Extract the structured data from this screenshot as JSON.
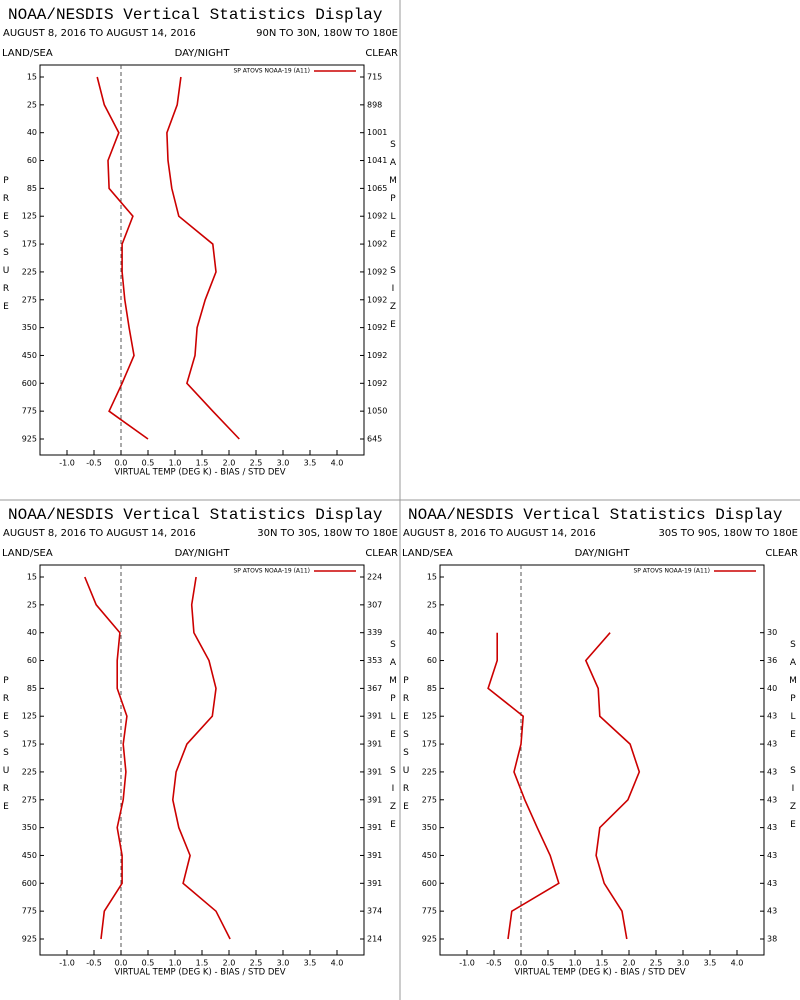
{
  "chart_data": [
    {
      "type": "line",
      "title": "NOAA/NESDIS Vertical Statistics Display",
      "date_range": "AUGUST 8, 2016 TO AUGUST 14, 2016",
      "region": "90N TO 30N, 180W TO 180E",
      "land_sea_label": "LAND/SEA",
      "day_night_label": "DAY/NIGHT",
      "clear_label": "CLEAR",
      "ylabel": "PRESSURE",
      "y2label": "SAMPLE SIZE",
      "xlabel": "VIRTUAL TEMP (DEG K) - BIAS / STD DEV",
      "legend": {
        "label": "SP ATOVS NOAA-19 (A11)",
        "color": "#cc0000"
      },
      "categories": [
        "15",
        "25",
        "40",
        "60",
        "85",
        "125",
        "175",
        "225",
        "275",
        "350",
        "450",
        "600",
        "775",
        "925"
      ],
      "sample_sizes": [
        "715",
        "898",
        "1001",
        "1041",
        "1065",
        "1092",
        "1092",
        "1092",
        "1092",
        "1092",
        "1092",
        "1092",
        "1050",
        "645"
      ],
      "series": [
        {
          "color": "#cc0000",
          "values": [
            -0.44,
            -0.31,
            -0.04,
            -0.24,
            -0.22,
            0.22,
            0.02,
            0.02,
            0.07,
            0.15,
            0.24,
            0.02,
            -0.22,
            0.5
          ]
        },
        {
          "color": "#cc0000",
          "values": [
            1.11,
            1.04,
            0.85,
            0.87,
            0.94,
            1.07,
            1.7,
            1.76,
            1.56,
            1.41,
            1.37,
            1.22,
            1.7,
            2.19
          ]
        }
      ],
      "xlim": [
        -1.5,
        4.5
      ],
      "xticks": [
        {
          "value": -1,
          "label": "-1.0"
        },
        -0.5,
        {
          "value": 0,
          "label": "0.0"
        },
        0.5,
        {
          "value": 1,
          "label": "1.0"
        },
        1.5,
        {
          "value": 2,
          "label": "2.0"
        },
        2.5,
        {
          "value": 3,
          "label": "3.0"
        },
        3.5,
        {
          "value": 4,
          "label": "4.0"
        }
      ]
    },
    {
      "type": "line",
      "title": "NOAA/NESDIS Vertical Statistics Display",
      "date_range": "AUGUST 8, 2016 TO AUGUST 14, 2016",
      "region": "30N TO 30S, 180W TO 180E",
      "land_sea_label": "LAND/SEA",
      "day_night_label": "DAY/NIGHT",
      "clear_label": "CLEAR",
      "ylabel": "PRESSURE",
      "y2label": "SAMPLE SIZE",
      "xlabel": "VIRTUAL TEMP (DEG K) - BIAS / STD DEV",
      "legend": {
        "label": "SP ATOVS NOAA-19 (A11)",
        "color": "#cc0000"
      },
      "categories": [
        "15",
        "25",
        "40",
        "60",
        "85",
        "125",
        "175",
        "225",
        "275",
        "350",
        "450",
        "600",
        "775",
        "925"
      ],
      "sample_sizes": [
        "224",
        "307",
        "339",
        "353",
        "367",
        "391",
        "391",
        "391",
        "391",
        "391",
        "391",
        "391",
        "374",
        "214"
      ],
      "series": [
        {
          "color": "#cc0000",
          "values": [
            -0.67,
            -0.46,
            -0.02,
            -0.07,
            -0.07,
            0.11,
            0.04,
            0.09,
            0.04,
            -0.07,
            0.02,
            0.02,
            -0.31,
            -0.37
          ]
        },
        {
          "color": "#cc0000",
          "values": [
            1.39,
            1.31,
            1.35,
            1.63,
            1.76,
            1.69,
            1.22,
            1.02,
            0.96,
            1.07,
            1.28,
            1.15,
            1.76,
            2.02
          ]
        }
      ],
      "xlim": [
        -1.5,
        4.5
      ],
      "xticks": [
        {
          "value": -1,
          "label": "-1.0"
        },
        -0.5,
        {
          "value": 0,
          "label": "0.0"
        },
        0.5,
        {
          "value": 1,
          "label": "1.0"
        },
        1.5,
        {
          "value": 2,
          "label": "2.0"
        },
        2.5,
        {
          "value": 3,
          "label": "3.0"
        },
        3.5,
        {
          "value": 4,
          "label": "4.0"
        }
      ]
    },
    {
      "type": "line",
      "title": "NOAA/NESDIS Vertical Statistics Display",
      "date_range": "AUGUST 8, 2016 TO AUGUST 14, 2016",
      "region": "30S TO 90S, 180W TO 180E",
      "land_sea_label": "LAND/SEA",
      "day_night_label": "DAY/NIGHT",
      "clear_label": "CLEAR",
      "ylabel": "PRESSURE",
      "y2label": "SAMPLE SIZE",
      "xlabel": "VIRTUAL TEMP (DEG K) - BIAS / STD DEV",
      "legend": {
        "label": "SP ATOVS NOAA-19 (A11)",
        "color": "#cc0000"
      },
      "categories": [
        "15",
        "25",
        "40",
        "60",
        "85",
        "125",
        "175",
        "225",
        "275",
        "350",
        "450",
        "600",
        "775",
        "925"
      ],
      "sample_sizes": [
        null,
        null,
        "30",
        "36",
        "40",
        "43",
        "43",
        "43",
        "43",
        "43",
        "43",
        "43",
        "43",
        "38"
      ],
      "series": [
        {
          "color": "#cc0000",
          "values": [
            null,
            null,
            -0.44,
            -0.44,
            -0.61,
            0.04,
            0.0,
            -0.13,
            0.07,
            0.3,
            0.54,
            0.7,
            -0.17,
            -0.24
          ]
        },
        {
          "color": "#cc0000",
          "values": [
            null,
            null,
            1.65,
            1.2,
            1.43,
            1.46,
            2.02,
            2.19,
            1.98,
            1.46,
            1.39,
            1.54,
            1.87,
            1.96
          ]
        }
      ],
      "xlim": [
        -1.5,
        4.5
      ],
      "xticks": [
        {
          "value": -1,
          "label": "-1.0"
        },
        -0.5,
        {
          "value": 0,
          "label": "0.0"
        },
        0.5,
        {
          "value": 1,
          "label": "1.0"
        },
        1.5,
        {
          "value": 2,
          "label": "2.0"
        },
        2.5,
        {
          "value": 3,
          "label": "3.0"
        },
        3.5,
        {
          "value": 4,
          "label": "4.0"
        }
      ]
    }
  ]
}
